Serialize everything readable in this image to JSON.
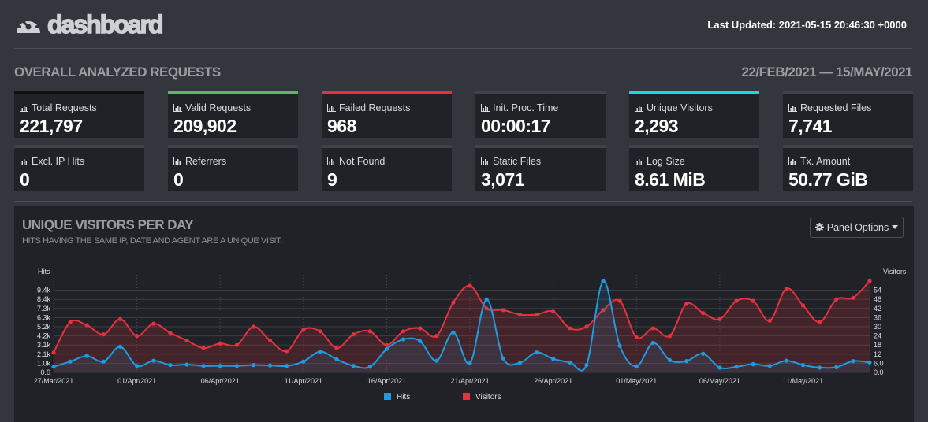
{
  "header": {
    "logo_text": "dashboard",
    "last_updated_label": "Last Updated:",
    "last_updated_value": "2021-05-15 20:46:30 +0000"
  },
  "overview": {
    "title": "OVERALL ANALYZED REQUESTS",
    "date_range": "22/FEB/2021 — 15/MAY/2021",
    "cards": [
      {
        "label": "Total Requests",
        "value": "221,797",
        "accent": "#111111"
      },
      {
        "label": "Valid Requests",
        "value": "209,902",
        "accent": "#5cb85c"
      },
      {
        "label": "Failed Requests",
        "value": "968",
        "accent": "#e5323e"
      },
      {
        "label": "Init. Proc. Time",
        "value": "00:00:17",
        "accent": "#3f4249"
      },
      {
        "label": "Unique Visitors",
        "value": "2,293",
        "accent": "#22d3e3"
      },
      {
        "label": "Requested Files",
        "value": "7,741",
        "accent": "#3f4249"
      },
      {
        "label": "Excl. IP Hits",
        "value": "0",
        "accent": "#3f4249"
      },
      {
        "label": "Referrers",
        "value": "0",
        "accent": "#3f4249"
      },
      {
        "label": "Not Found",
        "value": "9",
        "accent": "#3f4249"
      },
      {
        "label": "Static Files",
        "value": "3,071",
        "accent": "#3f4249"
      },
      {
        "label": "Log Size",
        "value": "8.61 MiB",
        "accent": "#3f4249"
      },
      {
        "label": "Tx. Amount",
        "value": "50.77 GiB",
        "accent": "#3f4249"
      }
    ]
  },
  "panel": {
    "title": "UNIQUE VISITORS PER DAY",
    "subtitle": "HITS HAVING THE SAME IP, DATE AND AGENT ARE A UNIQUE VISIT.",
    "options_label": "Panel Options",
    "options_icon": "gear-icon"
  },
  "chart_data": {
    "type": "line",
    "title": "UNIQUE VISITORS PER DAY",
    "left_axis_label": "Hits",
    "right_axis_label": "Visitors",
    "left_ticks": [
      "0.0",
      "1.0k",
      "2.1k",
      "3.1k",
      "4.2k",
      "5.2k",
      "6.3k",
      "7.3k",
      "8.4k",
      "9.4k"
    ],
    "right_ticks": [
      "0.0",
      "6.0",
      "12",
      "18",
      "24",
      "30",
      "36",
      "42",
      "48",
      "54"
    ],
    "left_max": 10500,
    "right_max": 60,
    "x_labels": [
      "27/Mar/2021",
      "01/Apr/2021",
      "06/Apr/2021",
      "11/Apr/2021",
      "16/Apr/2021",
      "21/Apr/2021",
      "26/Apr/2021",
      "01/May/2021",
      "06/May/2021",
      "11/May/2021"
    ],
    "series": [
      {
        "name": "Hits",
        "color": "#1f9be0",
        "axis": "left",
        "values": [
          650,
          1250,
          1900,
          1250,
          2950,
          750,
          1350,
          850,
          900,
          750,
          750,
          750,
          850,
          800,
          750,
          1250,
          2400,
          1500,
          750,
          650,
          2700,
          3800,
          3600,
          1350,
          4600,
          1050,
          8400,
          1600,
          1100,
          2300,
          1550,
          1150,
          850,
          10500,
          3050,
          700,
          3400,
          1400,
          1300,
          2150,
          550,
          650,
          950,
          750,
          1350,
          850,
          550,
          600,
          1300,
          1150
        ]
      },
      {
        "name": "Visitors",
        "color": "#e5323e",
        "axis": "right",
        "values": [
          13,
          33,
          31,
          25,
          35,
          24,
          32,
          26,
          21,
          16,
          19,
          18,
          30,
          21,
          14,
          28,
          27,
          16,
          25,
          27,
          18,
          27,
          29,
          24,
          46,
          57,
          42,
          41,
          38,
          38,
          40,
          29,
          30,
          41,
          47,
          23,
          29,
          24,
          45,
          39,
          35,
          47,
          47,
          34,
          55,
          44,
          33,
          48,
          49,
          60
        ]
      }
    ]
  }
}
